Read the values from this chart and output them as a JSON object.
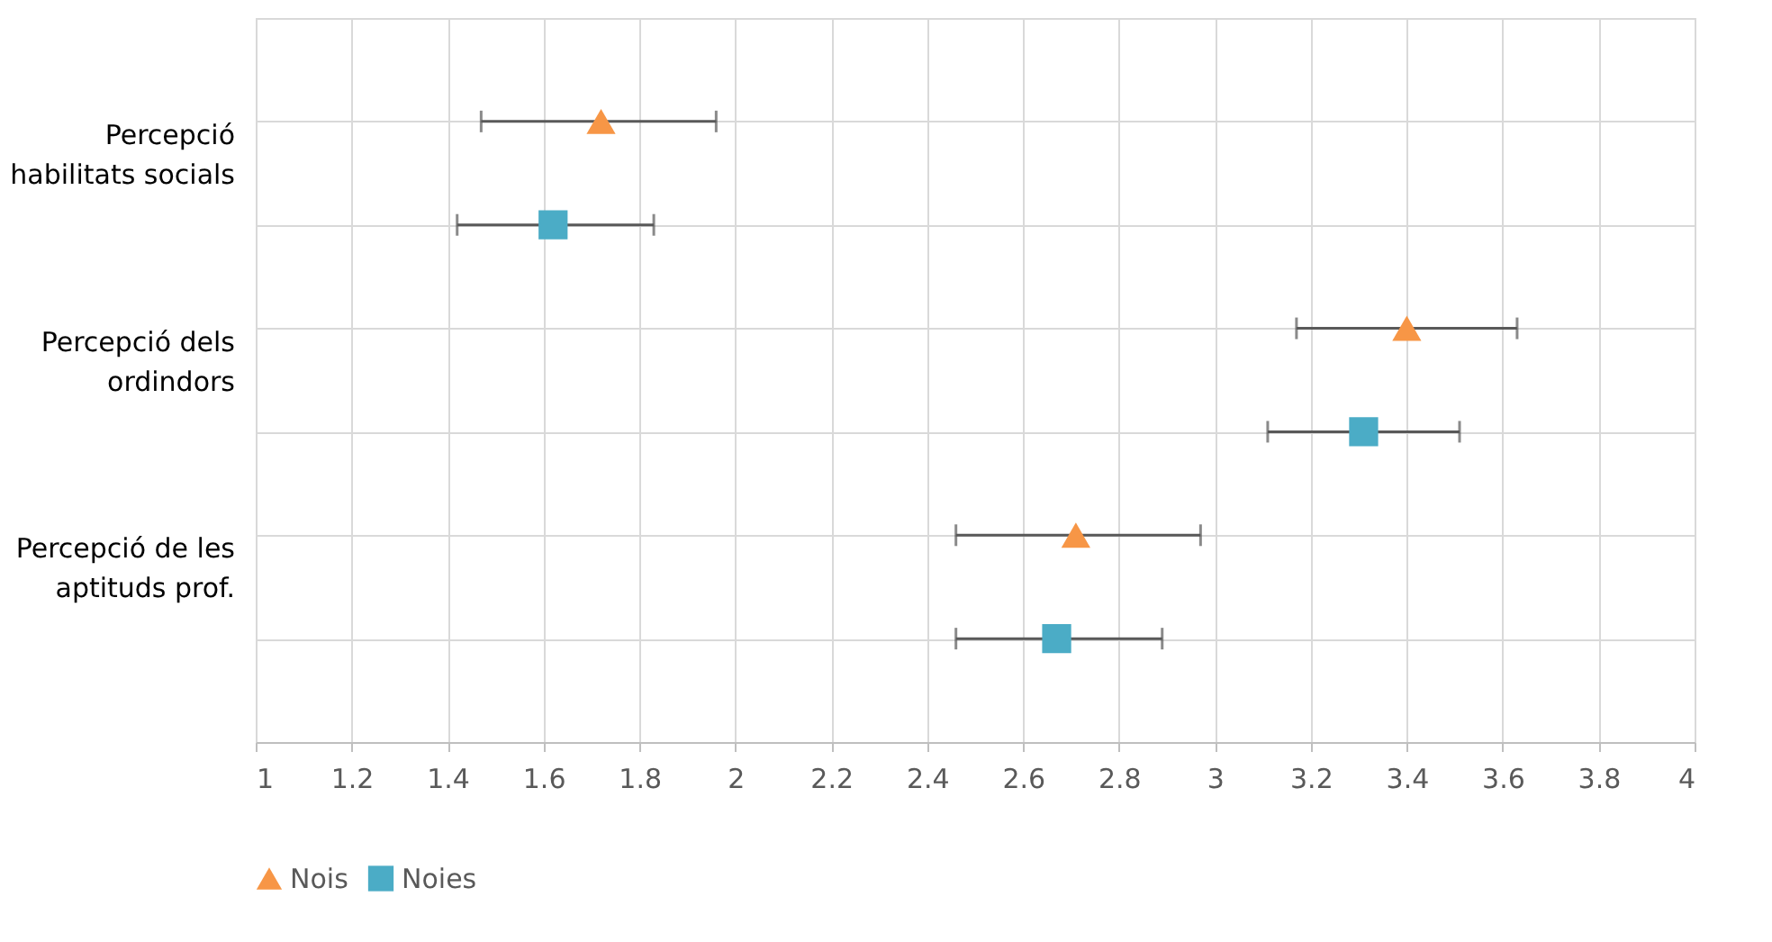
{
  "chart_data": {
    "type": "scatter",
    "orientation": "horizontal",
    "categories": [
      "Percepció habilitats socials",
      null,
      "Percepció dels ordindors",
      null,
      "Percepció de les aptituds prof.",
      null
    ],
    "series": [
      {
        "name": "Nois",
        "color": "#f79646",
        "marker": "triangle",
        "values": [
          1.72,
          null,
          3.4,
          null,
          2.71,
          null
        ],
        "errors": [
          [
            1.47,
            1.96
          ],
          null,
          [
            3.17,
            3.63
          ],
          null,
          [
            2.46,
            2.97
          ],
          null
        ]
      },
      {
        "name": "Noies",
        "color": "#4bacc6",
        "marker": "square",
        "values": [
          null,
          1.62,
          null,
          3.31,
          null,
          2.67
        ],
        "errors": [
          null,
          [
            1.42,
            1.83
          ],
          null,
          [
            3.11,
            3.51
          ],
          null,
          [
            2.46,
            2.89
          ]
        ]
      }
    ],
    "xlim": [
      1,
      4
    ],
    "xticks": [
      1,
      1.2,
      1.4,
      1.6,
      1.8,
      2,
      2.2,
      2.4,
      2.6,
      2.8,
      3,
      3.2,
      3.4,
      3.6,
      3.8,
      4
    ],
    "grid": true,
    "legend": "bottom"
  }
}
